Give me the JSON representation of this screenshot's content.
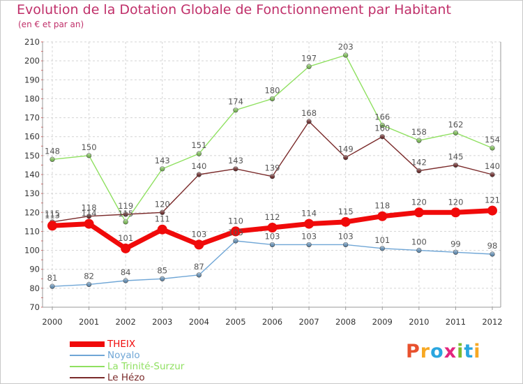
{
  "title": "Evolution de la Dotation Globale de Fonctionnement par Habitant",
  "subtitle": "(en € et par an)",
  "brand": {
    "text": "Proxiti",
    "colors": [
      "#e8512e",
      "#f7a823",
      "#2aa6df",
      "#e3257d",
      "#7dbb2f",
      "#2aa6df",
      "#f7a823"
    ]
  },
  "chart_data": {
    "type": "line",
    "x": [
      "2000",
      "2001",
      "2002",
      "2003",
      "2004",
      "2005",
      "2006",
      "2007",
      "2008",
      "2009",
      "2010",
      "2011",
      "2012"
    ],
    "ylim": [
      70,
      210
    ],
    "yticks": [
      70,
      80,
      90,
      100,
      110,
      120,
      130,
      140,
      150,
      160,
      170,
      180,
      190,
      200,
      210
    ],
    "grid": true,
    "legend": "bottom-left",
    "series": [
      {
        "name": "Noyalo",
        "color": "#6fa6d6",
        "values": [
          81,
          82,
          84,
          85,
          87,
          105,
          103,
          103,
          103,
          101,
          100,
          99,
          98
        ]
      },
      {
        "name": "La Trinité-Surzur",
        "color": "#8fe060",
        "values": [
          148,
          150,
          115,
          143,
          151,
          174,
          180,
          197,
          203,
          166,
          158,
          162,
          154
        ]
      },
      {
        "name": "Le Hézo",
        "color": "#7a2a2a",
        "values": [
          115,
          118,
          119,
          120,
          140,
          143,
          139,
          168,
          149,
          160,
          142,
          145,
          140
        ]
      },
      {
        "name": "THEIX",
        "color": "#f00a0a",
        "values": [
          113,
          114,
          101,
          111,
          103,
          110,
          112,
          114,
          115,
          118,
          120,
          120,
          121
        ]
      }
    ],
    "legend_order": [
      "THEIX",
      "Noyalo",
      "La Trinité-Surzur",
      "Le Hézo"
    ]
  }
}
